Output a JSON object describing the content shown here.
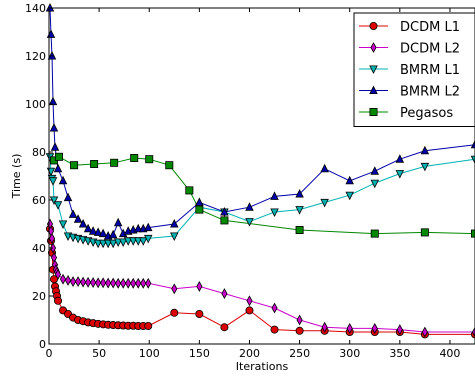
{
  "chart_data": {
    "type": "line",
    "xlabel": "Iterations",
    "ylabel": "Time (s)",
    "xlim": [
      0,
      425
    ],
    "ylim": [
      0,
      140
    ],
    "xticks": [
      0,
      50,
      100,
      150,
      200,
      250,
      300,
      350,
      400
    ],
    "yticks": [
      0,
      20,
      40,
      60,
      80,
      100,
      120,
      140
    ],
    "grid": false,
    "legend_position": "top-right",
    "series": [
      {
        "name": "DCDM L1",
        "color": "#dd0000",
        "marker": "circle",
        "points": [
          [
            1,
            48
          ],
          [
            2,
            43
          ],
          [
            3,
            38
          ],
          [
            4,
            31
          ],
          [
            5,
            27
          ],
          [
            6,
            24
          ],
          [
            7,
            22
          ],
          [
            8,
            20
          ],
          [
            9,
            18
          ],
          [
            14,
            14
          ],
          [
            19,
            12.5
          ],
          [
            24,
            11
          ],
          [
            29,
            10
          ],
          [
            34,
            9.5
          ],
          [
            39,
            9
          ],
          [
            44,
            8.7
          ],
          [
            49,
            8.4
          ],
          [
            54,
            8.2
          ],
          [
            59,
            8
          ],
          [
            64,
            7.9
          ],
          [
            69,
            7.8
          ],
          [
            74,
            7.7
          ],
          [
            79,
            7.6
          ],
          [
            84,
            7.6
          ],
          [
            89,
            7.5
          ],
          [
            94,
            7.5
          ],
          [
            99,
            7.5
          ],
          [
            125,
            13
          ],
          [
            150,
            12.5
          ],
          [
            175,
            7
          ],
          [
            200,
            14
          ],
          [
            225,
            6
          ],
          [
            250,
            5.5
          ],
          [
            275,
            5.5
          ],
          [
            300,
            5
          ],
          [
            325,
            5
          ],
          [
            350,
            5
          ],
          [
            375,
            4
          ],
          [
            425,
            4
          ]
        ]
      },
      {
        "name": "DCDM L2",
        "color": "#cc00cc",
        "marker": "diamond",
        "points": [
          [
            1,
            50
          ],
          [
            2,
            47
          ],
          [
            3,
            44
          ],
          [
            4,
            40
          ],
          [
            5,
            36
          ],
          [
            6,
            33
          ],
          [
            7,
            31
          ],
          [
            8,
            30
          ],
          [
            9,
            29
          ],
          [
            14,
            27
          ],
          [
            19,
            26.5
          ],
          [
            24,
            26
          ],
          [
            29,
            26
          ],
          [
            34,
            25.8
          ],
          [
            39,
            25.7
          ],
          [
            44,
            25.6
          ],
          [
            49,
            25.5
          ],
          [
            54,
            25.5
          ],
          [
            59,
            25.4
          ],
          [
            64,
            25.4
          ],
          [
            69,
            25.3
          ],
          [
            74,
            25.3
          ],
          [
            79,
            25.3
          ],
          [
            84,
            25.3
          ],
          [
            89,
            25.3
          ],
          [
            94,
            25.3
          ],
          [
            99,
            25.3
          ],
          [
            125,
            23
          ],
          [
            150,
            24
          ],
          [
            175,
            21
          ],
          [
            200,
            18
          ],
          [
            225,
            15
          ],
          [
            250,
            10
          ],
          [
            275,
            7
          ],
          [
            300,
            6.5
          ],
          [
            325,
            6.5
          ],
          [
            350,
            6
          ],
          [
            375,
            5
          ],
          [
            425,
            5
          ]
        ]
      },
      {
        "name": "BMRM L1",
        "color": "#00b3b3",
        "marker": "triangle-down",
        "points": [
          [
            1,
            78
          ],
          [
            2,
            72
          ],
          [
            3,
            69
          ],
          [
            4,
            68
          ],
          [
            5,
            60
          ],
          [
            9,
            58
          ],
          [
            14,
            50
          ],
          [
            19,
            45
          ],
          [
            24,
            44.5
          ],
          [
            29,
            44
          ],
          [
            34,
            43.5
          ],
          [
            39,
            43
          ],
          [
            44,
            42.5
          ],
          [
            49,
            42
          ],
          [
            54,
            42
          ],
          [
            59,
            42
          ],
          [
            64,
            42
          ],
          [
            69,
            42.5
          ],
          [
            74,
            42.5
          ],
          [
            79,
            43
          ],
          [
            84,
            43
          ],
          [
            89,
            43
          ],
          [
            94,
            43
          ],
          [
            99,
            44
          ],
          [
            125,
            45
          ],
          [
            150,
            57
          ],
          [
            175,
            55
          ],
          [
            200,
            51
          ],
          [
            225,
            55
          ],
          [
            250,
            56
          ],
          [
            275,
            59
          ],
          [
            300,
            62
          ],
          [
            325,
            67
          ],
          [
            350,
            71
          ],
          [
            375,
            74
          ],
          [
            425,
            77
          ]
        ]
      },
      {
        "name": "BMRM L2",
        "color": "#0000aa",
        "marker": "triangle-up",
        "points": [
          [
            1,
            140
          ],
          [
            2,
            129
          ],
          [
            3,
            120
          ],
          [
            4,
            101
          ],
          [
            5,
            90
          ],
          [
            6,
            82
          ],
          [
            9,
            73
          ],
          [
            14,
            68
          ],
          [
            19,
            61
          ],
          [
            24,
            54
          ],
          [
            29,
            52
          ],
          [
            34,
            50
          ],
          [
            39,
            48
          ],
          [
            44,
            47
          ],
          [
            49,
            46.5
          ],
          [
            54,
            46
          ],
          [
            59,
            45
          ],
          [
            64,
            45.5
          ],
          [
            69,
            50.5
          ],
          [
            74,
            46
          ],
          [
            79,
            47
          ],
          [
            84,
            47.5
          ],
          [
            89,
            48
          ],
          [
            94,
            48
          ],
          [
            99,
            48.5
          ],
          [
            125,
            50
          ],
          [
            150,
            59
          ],
          [
            175,
            55
          ],
          [
            200,
            57
          ],
          [
            225,
            61.5
          ],
          [
            250,
            62.5
          ],
          [
            275,
            73
          ],
          [
            300,
            68
          ],
          [
            325,
            72
          ],
          [
            350,
            77
          ],
          [
            375,
            80.5
          ],
          [
            425,
            83
          ]
        ]
      },
      {
        "name": "Pegasos",
        "color": "#008800",
        "marker": "square",
        "points": [
          [
            5,
            76.5
          ],
          [
            10,
            78
          ],
          [
            25,
            74.5
          ],
          [
            45,
            75
          ],
          [
            65,
            75.5
          ],
          [
            85,
            77.5
          ],
          [
            100,
            77
          ],
          [
            120,
            74.5
          ],
          [
            140,
            64
          ],
          [
            150,
            56
          ],
          [
            175,
            51.5
          ],
          [
            250,
            47.5
          ],
          [
            325,
            46
          ],
          [
            375,
            46.5
          ],
          [
            425,
            46
          ]
        ]
      }
    ]
  }
}
